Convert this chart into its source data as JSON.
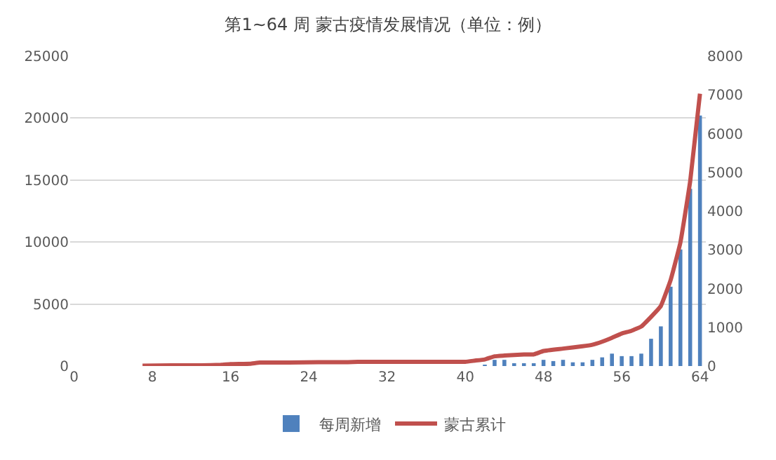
{
  "chart_data": {
    "type": "bar",
    "title": "第1~64 周 蒙古疫情发展情况（单位：例）",
    "series": [
      {
        "name": "每周新增",
        "color": "#4f81bd",
        "x": [
          42,
          43,
          44,
          45,
          46,
          47,
          48,
          49,
          50,
          51,
          52,
          53,
          54,
          55,
          56,
          57,
          58,
          59,
          60,
          61,
          62,
          63,
          64
        ],
        "values": [
          100,
          500,
          500,
          200,
          200,
          200,
          500,
          400,
          500,
          300,
          300,
          500,
          700,
          1000,
          800,
          800,
          1000,
          2200,
          3200,
          6400,
          9400,
          14300,
          20200
        ]
      },
      {
        "name": "蒙古累计",
        "type": "line",
        "axis": "y2",
        "color": "#c0504d",
        "x": [
          7,
          10,
          13,
          15,
          16,
          18,
          19,
          22,
          25,
          28,
          29,
          32,
          36,
          40,
          41,
          42,
          43,
          44,
          46,
          47,
          48,
          50,
          52,
          53,
          54,
          55,
          56,
          57,
          58,
          59,
          60,
          61,
          62,
          63,
          64
        ],
        "values": [
          10,
          20,
          20,
          30,
          50,
          60,
          90,
          90,
          100,
          100,
          110,
          110,
          110,
          110,
          140,
          170,
          250,
          270,
          300,
          300,
          390,
          450,
          510,
          550,
          630,
          730,
          840,
          910,
          1020,
          1270,
          1550,
          2220,
          3190,
          4770,
          7030
        ]
      }
    ],
    "xlim": [
      -0.4,
      64.6
    ],
    "xticks": [
      0,
      8,
      16,
      24,
      32,
      40,
      48,
      56,
      64
    ],
    "ylim": [
      0,
      25000
    ],
    "yticks": [
      0,
      5000,
      10000,
      15000,
      20000,
      25000
    ],
    "y2lim": [
      0,
      8000
    ],
    "y2ticks": [
      0,
      1000,
      2000,
      3000,
      4000,
      5000,
      6000,
      7000,
      8000
    ],
    "grid": "y",
    "legend": "bottom"
  }
}
